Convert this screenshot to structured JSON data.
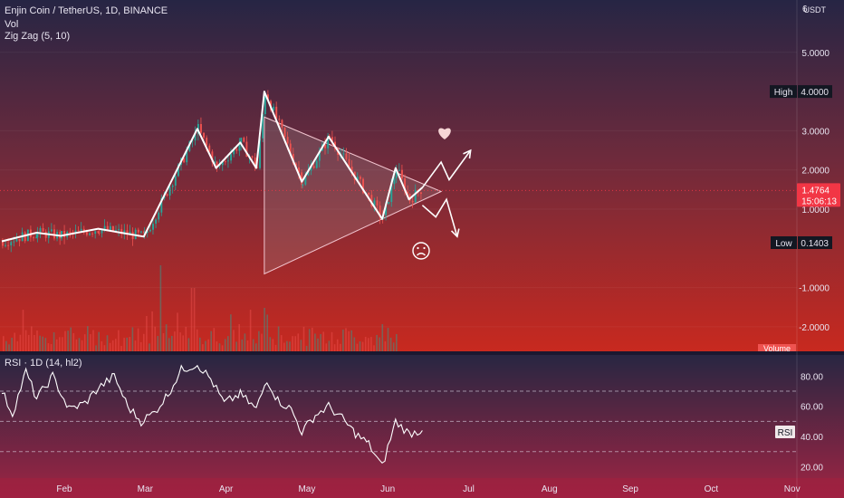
{
  "header": {
    "symbol_line": "Enjin Coin / TetherUS, 1D, BINANCE",
    "indicator_vol": "Vol",
    "indicator_zigzag": "Zig Zag (5, 10)",
    "currency_label": "USDT"
  },
  "price_axis": {
    "labels": [
      "6",
      "5.0000",
      "3.0000",
      "2.0000",
      "1.0000",
      "-1.0000",
      "-2.0000"
    ],
    "values": [
      6,
      5,
      3,
      2,
      1,
      -1,
      -2
    ]
  },
  "price_tags": {
    "high_label": "High",
    "high_value": "4.0000",
    "current_price": "1.4764",
    "countdown": "15:06:13",
    "low_label": "Low",
    "low_value": "0.1403",
    "volume_label": "Volume"
  },
  "rsi": {
    "legend": "RSI · 1D (14, hl2)",
    "tag": "RSI",
    "axis_labels": [
      "80.00",
      "60.00",
      "40.00",
      "20.00"
    ],
    "axis_values": [
      80,
      60,
      40,
      20
    ],
    "bands": [
      70,
      50,
      30
    ]
  },
  "time_axis": {
    "labels": [
      "Feb",
      "Mar",
      "Apr",
      "May",
      "Jun",
      "Jul",
      "Aug",
      "Sep",
      "Oct",
      "Nov"
    ]
  },
  "drawings": {
    "up_target_icon": "heart-icon",
    "down_target_icon": "sad-face-icon",
    "pattern": "symmetrical-triangle"
  },
  "colors": {
    "bull": "#26a69a",
    "bear": "#ef5350",
    "zigzag": "#ffffff",
    "price_tag": "#f23645",
    "tag_dark": "#131722",
    "triangle_fill": "#9e9e9e"
  },
  "chart_data": {
    "type": "candlestick",
    "y_axis_scale": "price (USDT)",
    "ylim_visible": [
      -2.5,
      6.0
    ],
    "zigzag_pivots": [
      {
        "date": "2021-01-01",
        "price": 0.18
      },
      {
        "date": "2021-01-14",
        "price": 0.4
      },
      {
        "date": "2021-01-23",
        "price": 0.32
      },
      {
        "date": "2021-02-06",
        "price": 0.5
      },
      {
        "date": "2021-02-23",
        "price": 0.3
      },
      {
        "date": "2021-03-15",
        "price": 3.05
      },
      {
        "date": "2021-03-22",
        "price": 2.05
      },
      {
        "date": "2021-03-31",
        "price": 2.7
      },
      {
        "date": "2021-04-06",
        "price": 2.05
      },
      {
        "date": "2021-04-09",
        "price": 4.0
      },
      {
        "date": "2021-04-23",
        "price": 1.7
      },
      {
        "date": "2021-05-03",
        "price": 2.85
      },
      {
        "date": "2021-05-23",
        "price": 0.75
      },
      {
        "date": "2021-05-28",
        "price": 2.05
      },
      {
        "date": "2021-06-02",
        "price": 1.25
      },
      {
        "date": "2021-06-07",
        "price": 1.55
      }
    ],
    "triangle": {
      "upper": [
        {
          "date": "2021-04-09",
          "price": 3.35
        },
        {
          "date": "2021-06-14",
          "price": 1.45
        }
      ],
      "lower": [
        {
          "date": "2021-04-09",
          "price": -0.65
        },
        {
          "date": "2021-06-14",
          "price": 1.45
        }
      ]
    },
    "scenario_up": [
      {
        "date": "2021-06-07",
        "price": 1.55
      },
      {
        "date": "2021-06-14",
        "price": 2.2
      },
      {
        "date": "2021-06-17",
        "price": 1.75
      },
      {
        "date": "2021-06-25",
        "price": 2.5
      }
    ],
    "scenario_down": [
      {
        "date": "2021-06-07",
        "price": 1.1
      },
      {
        "date": "2021-06-12",
        "price": 0.8
      },
      {
        "date": "2021-06-16",
        "price": 1.25
      },
      {
        "date": "2021-06-20",
        "price": 0.3
      }
    ],
    "rsi_series": [
      {
        "date": "2021-01-01",
        "value": 70
      },
      {
        "date": "2021-01-05",
        "value": 55
      },
      {
        "date": "2021-01-10",
        "value": 83
      },
      {
        "date": "2021-01-14",
        "value": 65
      },
      {
        "date": "2021-01-20",
        "value": 80
      },
      {
        "date": "2021-01-26",
        "value": 58
      },
      {
        "date": "2021-02-01",
        "value": 62
      },
      {
        "date": "2021-02-06",
        "value": 72
      },
      {
        "date": "2021-02-12",
        "value": 80
      },
      {
        "date": "2021-02-17",
        "value": 60
      },
      {
        "date": "2021-02-22",
        "value": 50
      },
      {
        "date": "2021-02-27",
        "value": 56
      },
      {
        "date": "2021-03-04",
        "value": 68
      },
      {
        "date": "2021-03-09",
        "value": 84
      },
      {
        "date": "2021-03-15",
        "value": 88
      },
      {
        "date": "2021-03-20",
        "value": 78
      },
      {
        "date": "2021-03-25",
        "value": 62
      },
      {
        "date": "2021-03-31",
        "value": 68
      },
      {
        "date": "2021-04-06",
        "value": 58
      },
      {
        "date": "2021-04-10",
        "value": 78
      },
      {
        "date": "2021-04-14",
        "value": 64
      },
      {
        "date": "2021-04-19",
        "value": 58
      },
      {
        "date": "2021-04-23",
        "value": 43
      },
      {
        "date": "2021-04-28",
        "value": 54
      },
      {
        "date": "2021-05-03",
        "value": 60
      },
      {
        "date": "2021-05-08",
        "value": 52
      },
      {
        "date": "2021-05-13",
        "value": 42
      },
      {
        "date": "2021-05-18",
        "value": 35
      },
      {
        "date": "2021-05-23",
        "value": 20
      },
      {
        "date": "2021-05-28",
        "value": 50
      },
      {
        "date": "2021-06-02",
        "value": 42
      },
      {
        "date": "2021-06-07",
        "value": 44
      }
    ],
    "volume_spikes": [
      {
        "date": "2021-03-01",
        "relative": 0.95
      },
      {
        "date": "2021-03-13",
        "relative": 0.7
      },
      {
        "date": "2021-04-09",
        "relative": 0.48
      },
      {
        "date": "2021-05-23",
        "relative": 0.3
      }
    ]
  }
}
